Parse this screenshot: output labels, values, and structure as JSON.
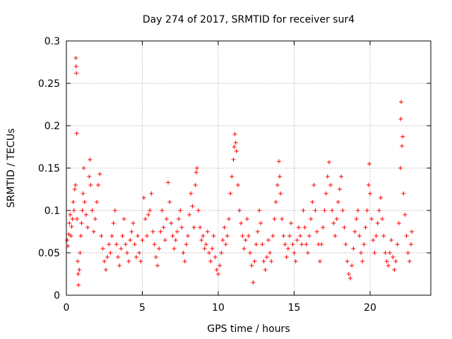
{
  "chart_data": {
    "type": "scatter",
    "title": "Day 274 of 2017, SRMTID for receiver sur4",
    "xlabel": "GPS time / hours",
    "ylabel": "SRMTID / TECUs",
    "xlim": [
      0,
      24
    ],
    "ylim": [
      0,
      0.3
    ],
    "x_ticks": [
      0,
      5,
      10,
      15,
      20
    ],
    "y_ticks": [
      0,
      0.05,
      0.1,
      0.15,
      0.2,
      0.25,
      0.3
    ],
    "x_tick_labels": [
      "0",
      "5",
      "10",
      "15",
      "20"
    ],
    "y_tick_labels": [
      "0",
      "0.05",
      "0.1",
      "0.15",
      "0.2",
      "0.25",
      "0.3"
    ],
    "grid": true,
    "marker": "+",
    "color": "#ff0000",
    "series": [
      {
        "name": "sur4",
        "points": [
          [
            0.05,
            0.065
          ],
          [
            0.1,
            0.058
          ],
          [
            0.15,
            0.072
          ],
          [
            0.2,
            0.085
          ],
          [
            0.25,
            0.095
          ],
          [
            0.3,
            0.07
          ],
          [
            0.35,
            0.081
          ],
          [
            0.4,
            0.09
          ],
          [
            0.45,
            0.11
          ],
          [
            0.5,
            0.1
          ],
          [
            0.55,
            0.125
          ],
          [
            0.6,
            0.13
          ],
          [
            0.62,
            0.28
          ],
          [
            0.64,
            0.27
          ],
          [
            0.66,
            0.262
          ],
          [
            0.68,
            0.191
          ],
          [
            0.7,
            0.09
          ],
          [
            0.75,
            0.04
          ],
          [
            0.78,
            0.025
          ],
          [
            0.8,
            0.012
          ],
          [
            0.85,
            0.03
          ],
          [
            0.9,
            0.05
          ],
          [
            0.95,
            0.07
          ],
          [
            1.0,
            0.085
          ],
          [
            1.05,
            0.1
          ],
          [
            1.1,
            0.12
          ],
          [
            1.15,
            0.15
          ],
          [
            1.2,
            0.11
          ],
          [
            1.3,
            0.095
          ],
          [
            1.4,
            0.08
          ],
          [
            1.5,
            0.14
          ],
          [
            1.55,
            0.16
          ],
          [
            1.6,
            0.13
          ],
          [
            1.7,
            0.1
          ],
          [
            1.8,
            0.075
          ],
          [
            1.9,
            0.09
          ],
          [
            2.0,
            0.11
          ],
          [
            2.1,
            0.13
          ],
          [
            2.2,
            0.143
          ],
          [
            2.3,
            0.07
          ],
          [
            2.4,
            0.055
          ],
          [
            2.5,
            0.04
          ],
          [
            2.6,
            0.03
          ],
          [
            2.7,
            0.045
          ],
          [
            2.8,
            0.06
          ],
          [
            2.9,
            0.05
          ],
          [
            3.0,
            0.07
          ],
          [
            3.1,
            0.085
          ],
          [
            3.2,
            0.1
          ],
          [
            3.3,
            0.06
          ],
          [
            3.4,
            0.045
          ],
          [
            3.5,
            0.035
          ],
          [
            3.6,
            0.055
          ],
          [
            3.7,
            0.07
          ],
          [
            3.8,
            0.09
          ],
          [
            3.9,
            0.06
          ],
          [
            4.0,
            0.05
          ],
          [
            4.1,
            0.04
          ],
          [
            4.2,
            0.065
          ],
          [
            4.3,
            0.075
          ],
          [
            4.4,
            0.085
          ],
          [
            4.5,
            0.06
          ],
          [
            4.6,
            0.045
          ],
          [
            4.7,
            0.07
          ],
          [
            4.8,
            0.05
          ],
          [
            4.9,
            0.04
          ],
          [
            5.0,
            0.065
          ],
          [
            5.1,
            0.115
          ],
          [
            5.2,
            0.09
          ],
          [
            5.3,
            0.07
          ],
          [
            5.4,
            0.095
          ],
          [
            5.5,
            0.1
          ],
          [
            5.6,
            0.12
          ],
          [
            5.7,
            0.075
          ],
          [
            5.8,
            0.06
          ],
          [
            5.9,
            0.045
          ],
          [
            6.0,
            0.035
          ],
          [
            6.1,
            0.055
          ],
          [
            6.2,
            0.075
          ],
          [
            6.3,
            0.1
          ],
          [
            6.4,
            0.08
          ],
          [
            6.5,
            0.065
          ],
          [
            6.6,
            0.09
          ],
          [
            6.7,
            0.133
          ],
          [
            6.8,
            0.11
          ],
          [
            6.9,
            0.085
          ],
          [
            7.0,
            0.07
          ],
          [
            7.1,
            0.055
          ],
          [
            7.2,
            0.065
          ],
          [
            7.3,
            0.075
          ],
          [
            7.4,
            0.09
          ],
          [
            7.5,
            0.1
          ],
          [
            7.6,
            0.08
          ],
          [
            7.7,
            0.05
          ],
          [
            7.8,
            0.04
          ],
          [
            7.9,
            0.06
          ],
          [
            8.0,
            0.07
          ],
          [
            8.1,
            0.095
          ],
          [
            8.2,
            0.12
          ],
          [
            8.3,
            0.105
          ],
          [
            8.4,
            0.08
          ],
          [
            8.5,
            0.13
          ],
          [
            8.55,
            0.145
          ],
          [
            8.6,
            0.15
          ],
          [
            8.7,
            0.1
          ],
          [
            8.8,
            0.08
          ],
          [
            8.9,
            0.065
          ],
          [
            9.0,
            0.07
          ],
          [
            9.1,
            0.055
          ],
          [
            9.2,
            0.06
          ],
          [
            9.3,
            0.075
          ],
          [
            9.4,
            0.05
          ],
          [
            9.5,
            0.04
          ],
          [
            9.6,
            0.055
          ],
          [
            9.7,
            0.07
          ],
          [
            9.8,
            0.045
          ],
          [
            9.9,
            0.03
          ],
          [
            10.0,
            0.025
          ],
          [
            10.1,
            0.035
          ],
          [
            10.2,
            0.05
          ],
          [
            10.3,
            0.065
          ],
          [
            10.4,
            0.08
          ],
          [
            10.5,
            0.06
          ],
          [
            10.6,
            0.07
          ],
          [
            10.7,
            0.09
          ],
          [
            10.8,
            0.12
          ],
          [
            10.9,
            0.14
          ],
          [
            11.0,
            0.16
          ],
          [
            11.05,
            0.175
          ],
          [
            11.1,
            0.19
          ],
          [
            11.15,
            0.18
          ],
          [
            11.2,
            0.17
          ],
          [
            11.3,
            0.13
          ],
          [
            11.4,
            0.1
          ],
          [
            11.5,
            0.085
          ],
          [
            11.6,
            0.07
          ],
          [
            11.7,
            0.055
          ],
          [
            11.8,
            0.065
          ],
          [
            11.9,
            0.09
          ],
          [
            12.0,
            0.07
          ],
          [
            12.1,
            0.05
          ],
          [
            12.2,
            0.035
          ],
          [
            12.3,
            0.015
          ],
          [
            12.4,
            0.04
          ],
          [
            12.5,
            0.06
          ],
          [
            12.6,
            0.075
          ],
          [
            12.7,
            0.1
          ],
          [
            12.8,
            0.085
          ],
          [
            12.9,
            0.06
          ],
          [
            13.0,
            0.04
          ],
          [
            13.1,
            0.03
          ],
          [
            13.2,
            0.045
          ],
          [
            13.3,
            0.065
          ],
          [
            13.4,
            0.05
          ],
          [
            13.5,
            0.04
          ],
          [
            13.6,
            0.07
          ],
          [
            13.7,
            0.09
          ],
          [
            13.8,
            0.11
          ],
          [
            13.9,
            0.13
          ],
          [
            14.0,
            0.158
          ],
          [
            14.05,
            0.14
          ],
          [
            14.1,
            0.12
          ],
          [
            14.2,
            0.09
          ],
          [
            14.3,
            0.07
          ],
          [
            14.4,
            0.06
          ],
          [
            14.5,
            0.045
          ],
          [
            14.6,
            0.055
          ],
          [
            14.7,
            0.07
          ],
          [
            14.8,
            0.085
          ],
          [
            14.9,
            0.06
          ],
          [
            15.0,
            0.05
          ],
          [
            15.1,
            0.04
          ],
          [
            15.2,
            0.065
          ],
          [
            15.3,
            0.08
          ],
          [
            15.4,
            0.07
          ],
          [
            15.5,
            0.06
          ],
          [
            15.6,
            0.1
          ],
          [
            15.7,
            0.08
          ],
          [
            15.8,
            0.06
          ],
          [
            15.9,
            0.05
          ],
          [
            16.0,
            0.07
          ],
          [
            16.1,
            0.09
          ],
          [
            16.2,
            0.11
          ],
          [
            16.3,
            0.13
          ],
          [
            16.4,
            0.1
          ],
          [
            16.5,
            0.075
          ],
          [
            16.6,
            0.06
          ],
          [
            16.7,
            0.04
          ],
          [
            16.8,
            0.06
          ],
          [
            16.9,
            0.08
          ],
          [
            17.0,
            0.1
          ],
          [
            17.1,
            0.12
          ],
          [
            17.2,
            0.14
          ],
          [
            17.3,
            0.157
          ],
          [
            17.4,
            0.13
          ],
          [
            17.5,
            0.1
          ],
          [
            17.6,
            0.085
          ],
          [
            17.7,
            0.07
          ],
          [
            17.8,
            0.09
          ],
          [
            17.9,
            0.11
          ],
          [
            18.0,
            0.125
          ],
          [
            18.1,
            0.14
          ],
          [
            18.2,
            0.1
          ],
          [
            18.3,
            0.08
          ],
          [
            18.4,
            0.06
          ],
          [
            18.5,
            0.04
          ],
          [
            18.6,
            0.025
          ],
          [
            18.7,
            0.02
          ],
          [
            18.8,
            0.035
          ],
          [
            18.9,
            0.055
          ],
          [
            19.0,
            0.075
          ],
          [
            19.1,
            0.09
          ],
          [
            19.2,
            0.1
          ],
          [
            19.3,
            0.07
          ],
          [
            19.4,
            0.05
          ],
          [
            19.5,
            0.04
          ],
          [
            19.6,
            0.06
          ],
          [
            19.7,
            0.08
          ],
          [
            19.8,
            0.1
          ],
          [
            19.9,
            0.13
          ],
          [
            19.95,
            0.155
          ],
          [
            20.0,
            0.12
          ],
          [
            20.1,
            0.09
          ],
          [
            20.2,
            0.065
          ],
          [
            20.3,
            0.05
          ],
          [
            20.4,
            0.07
          ],
          [
            20.5,
            0.085
          ],
          [
            20.6,
            0.1
          ],
          [
            20.7,
            0.115
          ],
          [
            20.8,
            0.09
          ],
          [
            20.9,
            0.07
          ],
          [
            21.0,
            0.05
          ],
          [
            21.1,
            0.04
          ],
          [
            21.2,
            0.035
          ],
          [
            21.3,
            0.05
          ],
          [
            21.4,
            0.065
          ],
          [
            21.5,
            0.045
          ],
          [
            21.6,
            0.03
          ],
          [
            21.7,
            0.04
          ],
          [
            21.8,
            0.06
          ],
          [
            21.9,
            0.085
          ],
          [
            22.0,
            0.15
          ],
          [
            22.02,
            0.208
          ],
          [
            22.05,
            0.228
          ],
          [
            22.1,
            0.176
          ],
          [
            22.15,
            0.187
          ],
          [
            22.2,
            0.12
          ],
          [
            22.3,
            0.095
          ],
          [
            22.4,
            0.07
          ],
          [
            22.5,
            0.05
          ],
          [
            22.6,
            0.04
          ],
          [
            22.7,
            0.06
          ],
          [
            22.75,
            0.075
          ]
        ]
      }
    ]
  }
}
